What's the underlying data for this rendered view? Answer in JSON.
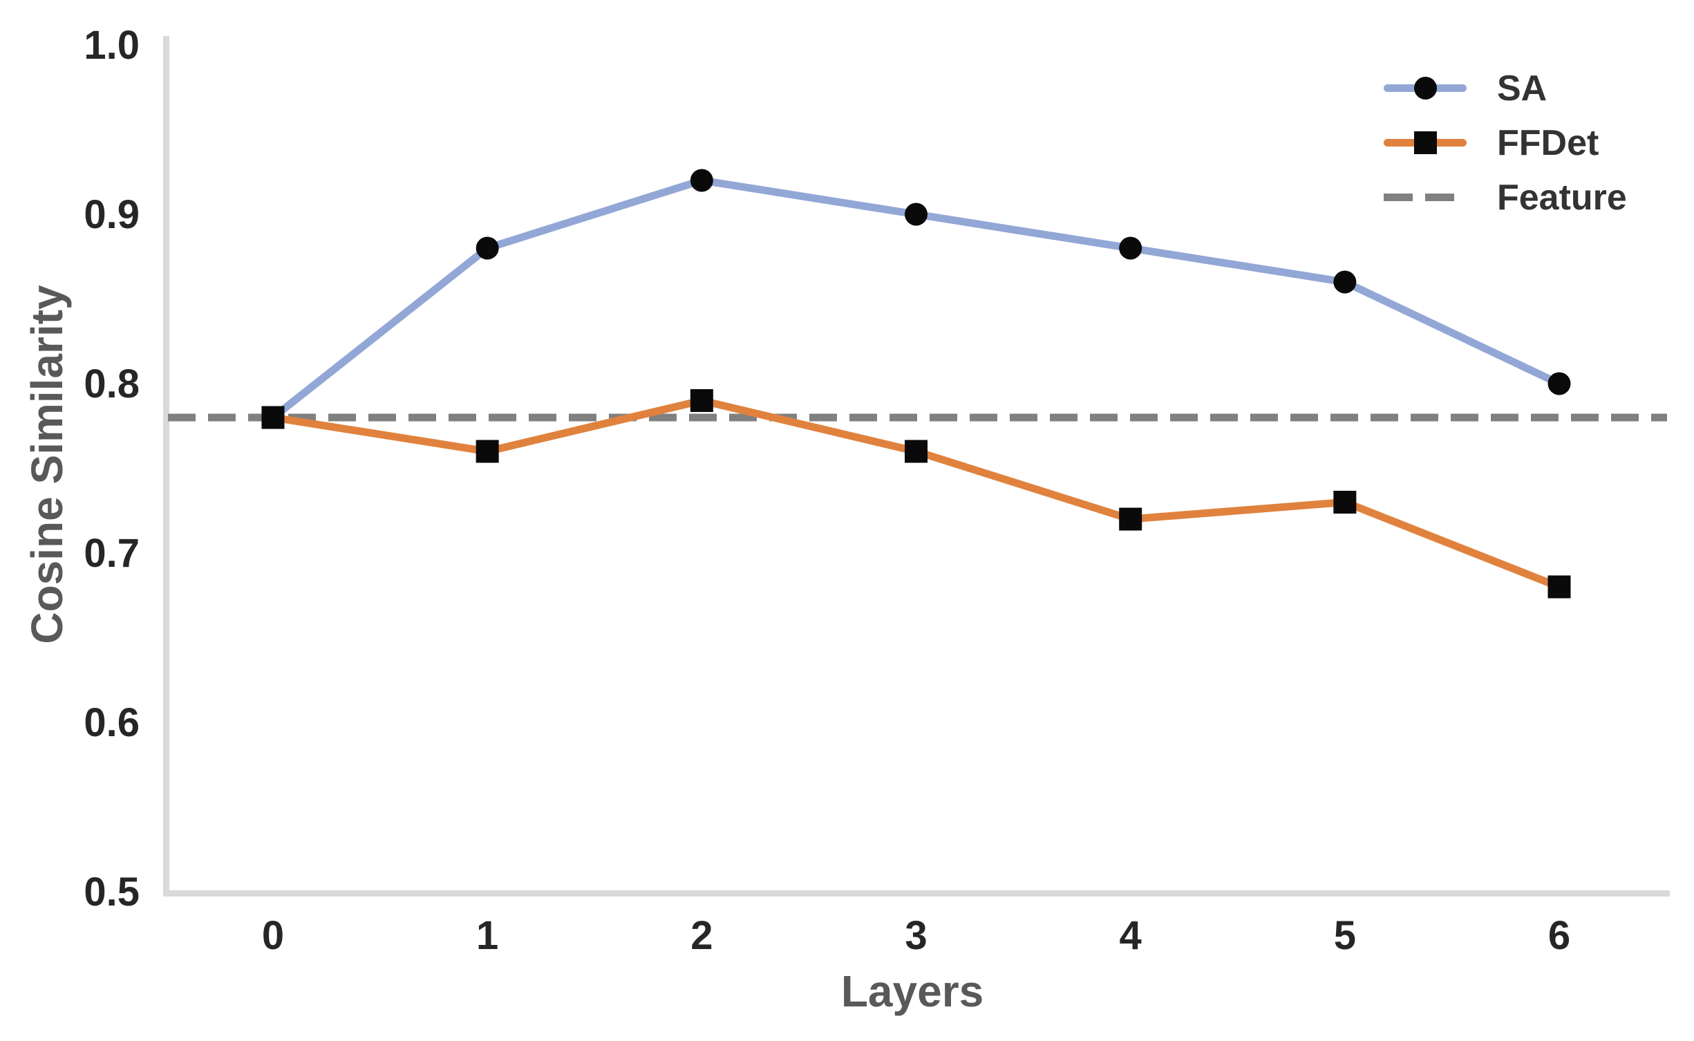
{
  "chart_data": {
    "type": "line",
    "title": "",
    "xlabel": "Layers",
    "ylabel": "Cosine Similarity",
    "x": [
      0,
      1,
      2,
      3,
      4,
      5,
      6
    ],
    "xtick_labels": [
      "0",
      "1",
      "2",
      "3",
      "4",
      "5",
      "6"
    ],
    "yticks": [
      0.5,
      0.6,
      0.7,
      0.8,
      0.9,
      1.0
    ],
    "ytick_labels": [
      "0.5",
      "0.6",
      "0.7",
      "0.8",
      "0.9",
      "1.0"
    ],
    "xlim": [
      -0.5,
      6.5
    ],
    "ylim": [
      0.5,
      1.0
    ],
    "grid": false,
    "legend_position": "upper-right",
    "series": [
      {
        "name": "SA",
        "marker": "circle",
        "line_color": "#92a7d6",
        "marker_color": "#0a0a0a",
        "values": [
          0.78,
          0.88,
          0.92,
          0.9,
          0.88,
          0.86,
          0.8
        ]
      },
      {
        "name": "FFDet",
        "marker": "square",
        "line_color": "#e0823e",
        "marker_color": "#0a0a0a",
        "values": [
          0.78,
          0.76,
          0.79,
          0.76,
          0.72,
          0.73,
          0.68
        ]
      }
    ],
    "reference_line": {
      "name": "Feature",
      "value": 0.78,
      "color": "#808080",
      "style": "dashed"
    }
  },
  "axes": {
    "xlabel": "Layers",
    "ylabel": "Cosine Similarity"
  },
  "legend": {
    "items": [
      {
        "label": "SA"
      },
      {
        "label": "FFDet"
      },
      {
        "label": "Feature"
      }
    ]
  },
  "colors": {
    "sa_line": "#92a7d6",
    "ffdet_line": "#e0823e",
    "feature_line": "#808080",
    "marker": "#0a0a0a",
    "spine": "#d9d9d9",
    "tick_label": "#262626",
    "axis_label": "#595959",
    "legend_text": "#333333",
    "background": "#ffffff"
  }
}
